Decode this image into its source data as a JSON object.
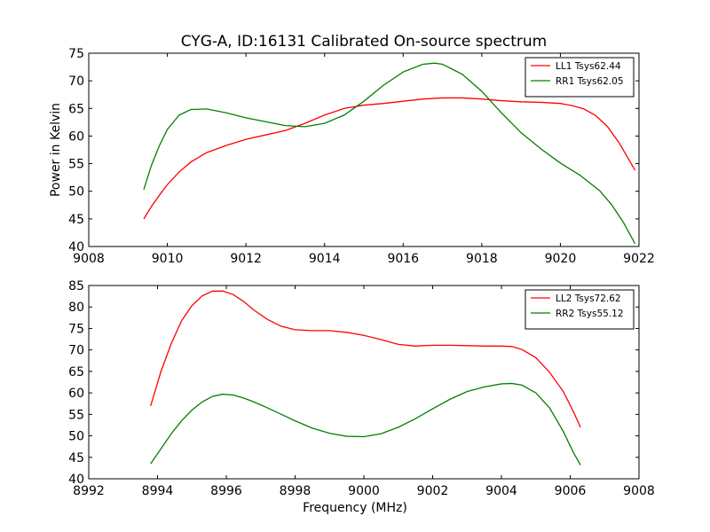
{
  "figure": {
    "title": "CYG-A, ID:16131 Calibrated On-source spectrum"
  },
  "chart_data": [
    {
      "type": "line",
      "title": "CYG-A, ID:16131 Calibrated On-source spectrum",
      "xlabel": "",
      "ylabel": "Power in Kelvin",
      "xlim": [
        9008,
        9022
      ],
      "ylim": [
        40,
        75
      ],
      "x_ticks": [
        9008,
        9010,
        9012,
        9014,
        9016,
        9018,
        9020,
        9022
      ],
      "y_ticks": [
        40,
        45,
        50,
        55,
        60,
        65,
        70,
        75
      ],
      "legend_position": "top-right",
      "series": [
        {
          "name": "LL1 Tsys62.44",
          "color": "#ff0000",
          "x": [
            9009.4,
            9009.6,
            9009.8,
            9010.0,
            9010.3,
            9010.6,
            9011.0,
            9011.5,
            9012.0,
            9012.5,
            9013.0,
            9013.5,
            9014.0,
            9014.5,
            9015.0,
            9015.5,
            9016.0,
            9016.5,
            9017.0,
            9017.5,
            9018.0,
            9018.5,
            9019.0,
            9019.5,
            9020.0,
            9020.3,
            9020.6,
            9020.9,
            9021.2,
            9021.5,
            9021.9
          ],
          "y": [
            45.0,
            47.3,
            49.3,
            51.2,
            53.5,
            55.3,
            57.0,
            58.3,
            59.4,
            60.2,
            61.0,
            62.3,
            63.8,
            65.0,
            65.6,
            65.9,
            66.3,
            66.7,
            66.9,
            66.9,
            66.7,
            66.4,
            66.2,
            66.1,
            65.9,
            65.5,
            64.9,
            63.7,
            61.7,
            58.7,
            53.8
          ]
        },
        {
          "name": "RR1 Tsys62.05",
          "color": "#008000",
          "x": [
            9009.4,
            9009.6,
            9009.8,
            9010.0,
            9010.3,
            9010.6,
            9011.0,
            9011.5,
            9012.0,
            9012.5,
            9013.0,
            9013.5,
            9014.0,
            9014.5,
            9015.0,
            9015.5,
            9016.0,
            9016.5,
            9016.8,
            9017.0,
            9017.5,
            9018.0,
            9018.5,
            9019.0,
            9019.5,
            9020.0,
            9020.5,
            9021.0,
            9021.3,
            9021.6,
            9021.9
          ],
          "y": [
            50.3,
            54.8,
            58.3,
            61.2,
            63.8,
            64.8,
            64.9,
            64.2,
            63.3,
            62.6,
            61.9,
            61.7,
            62.3,
            63.8,
            66.3,
            69.2,
            71.6,
            73.0,
            73.2,
            73.0,
            71.2,
            68.1,
            64.2,
            60.6,
            57.7,
            55.1,
            52.9,
            50.1,
            47.6,
            44.4,
            40.5
          ]
        }
      ]
    },
    {
      "type": "line",
      "title": "",
      "xlabel": "Frequency (MHz)",
      "ylabel": "",
      "xlim": [
        8992,
        9008
      ],
      "ylim": [
        40,
        85
      ],
      "x_ticks": [
        8992,
        8994,
        8996,
        8998,
        9000,
        9002,
        9004,
        9006,
        9008
      ],
      "y_ticks": [
        40,
        45,
        50,
        55,
        60,
        65,
        70,
        75,
        80,
        85
      ],
      "legend_position": "top-right",
      "series": [
        {
          "name": "LL2 Tsys72.62",
          "color": "#ff0000",
          "x": [
            8993.8,
            8994.1,
            8994.4,
            8994.7,
            8995.0,
            8995.3,
            8995.6,
            8995.9,
            8996.2,
            8996.5,
            8996.8,
            8997.2,
            8997.6,
            8998.0,
            8998.5,
            8999.0,
            8999.5,
            9000.0,
            9000.5,
            9001.0,
            9001.5,
            9002.0,
            9002.5,
            9003.0,
            9003.5,
            9004.0,
            9004.3,
            9004.6,
            9005.0,
            9005.4,
            9005.8,
            9006.1,
            9006.3
          ],
          "y": [
            57.0,
            65.0,
            71.5,
            76.8,
            80.3,
            82.6,
            83.7,
            83.7,
            82.9,
            81.3,
            79.3,
            77.1,
            75.5,
            74.7,
            74.5,
            74.5,
            74.1,
            73.4,
            72.4,
            71.3,
            70.9,
            71.1,
            71.1,
            71.0,
            70.9,
            70.9,
            70.8,
            70.1,
            68.2,
            64.8,
            60.3,
            55.5,
            52.0
          ]
        },
        {
          "name": "RR2 Tsys55.12",
          "color": "#008000",
          "x": [
            8993.8,
            8994.1,
            8994.4,
            8994.7,
            8995.0,
            8995.3,
            8995.6,
            8995.9,
            8996.2,
            8996.5,
            8996.8,
            8997.2,
            8997.6,
            8998.0,
            8998.5,
            8999.0,
            8999.5,
            9000.0,
            9000.5,
            9001.0,
            9001.5,
            9002.0,
            9002.5,
            9003.0,
            9003.5,
            9004.0,
            9004.3,
            9004.6,
            9005.0,
            9005.4,
            9005.8,
            9006.1,
            9006.3
          ],
          "y": [
            43.5,
            47.0,
            50.5,
            53.5,
            56.0,
            57.9,
            59.2,
            59.7,
            59.5,
            58.8,
            57.9,
            56.5,
            55.0,
            53.5,
            51.8,
            50.6,
            49.9,
            49.8,
            50.5,
            52.0,
            54.0,
            56.3,
            58.5,
            60.3,
            61.4,
            62.1,
            62.2,
            61.8,
            60.0,
            56.5,
            51.0,
            46.0,
            43.2
          ]
        }
      ]
    }
  ]
}
